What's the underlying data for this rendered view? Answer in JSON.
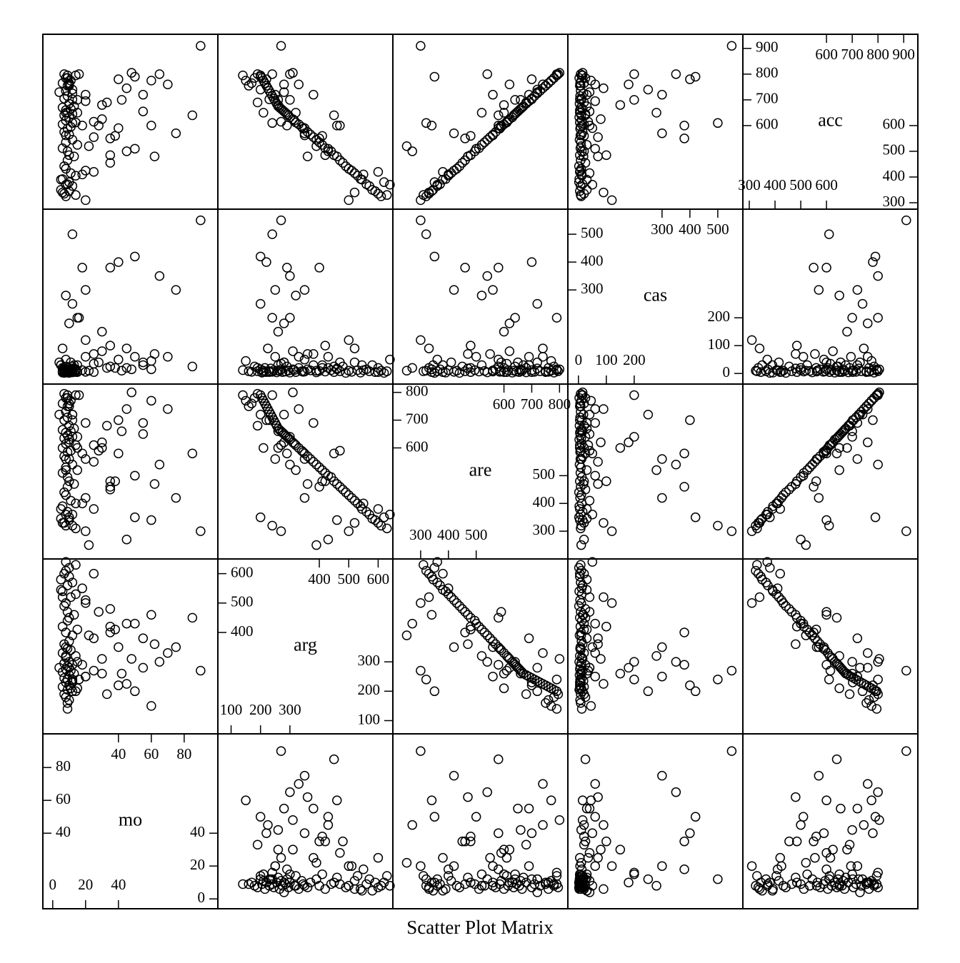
{
  "chart_data": {
    "type": "scatter_matrix",
    "title": "Scatter Plot Matrix",
    "color": "#000000",
    "variables": [
      {
        "name": "mo",
        "lim": [
          -6,
          100.5
        ],
        "lower_ticks": [
          0,
          20,
          40
        ],
        "upper_ticks": [
          40,
          60,
          80
        ],
        "values": [
          8,
          10,
          7,
          12,
          9,
          5,
          14,
          6,
          11,
          20,
          8,
          35,
          9,
          7,
          13,
          10,
          50,
          9,
          6,
          15,
          8,
          12,
          25,
          10,
          7,
          40,
          9,
          11,
          6,
          14,
          8,
          30,
          10,
          7,
          12,
          9,
          55,
          8,
          11,
          6,
          13,
          10,
          20,
          7,
          9,
          12,
          8,
          45,
          10,
          6,
          11,
          9,
          14,
          7,
          8,
          10,
          60,
          9,
          12,
          25,
          8,
          35,
          15,
          10,
          20,
          40,
          65,
          12,
          30,
          8,
          18,
          90,
          50,
          12,
          75,
          35,
          45,
          22,
          60,
          25,
          10,
          8,
          14,
          5,
          18,
          28,
          38,
          55,
          70,
          42,
          15,
          33,
          9,
          48,
          20,
          6,
          85,
          62,
          16,
          4
        ]
      },
      {
        "name": "arg",
        "lim": [
          55,
          650
        ],
        "lower_ticks": [
          100,
          200,
          300
        ],
        "upper_ticks": [
          400,
          500,
          600
        ],
        "values": [
          610,
          590,
          600,
          570,
          560,
          545,
          530,
          540,
          520,
          510,
          500,
          480,
          470,
          490,
          460,
          450,
          430,
          440,
          420,
          410,
          400,
          390,
          380,
          370,
          360,
          350,
          345,
          340,
          330,
          320,
          315,
          310,
          300,
          295,
          290,
          285,
          280,
          275,
          270,
          265,
          260,
          255,
          250,
          245,
          240,
          235,
          230,
          225,
          220,
          215,
          210,
          205,
          200,
          190,
          180,
          170,
          150,
          140,
          230,
          270,
          350,
          420,
          300,
          280,
          250,
          220,
          300,
          200,
          260,
          320,
          290,
          270,
          200,
          240,
          350,
          400,
          430,
          390,
          460,
          600,
          620,
          640,
          630,
          580,
          550,
          470,
          410,
          380,
          330,
          260,
          210,
          190,
          160,
          310,
          500,
          520,
          450,
          360,
          240,
          280
        ]
      },
      {
        "name": "are",
        "lim": [
          200,
          830
        ],
        "lower_ticks": [
          300,
          400,
          500
        ],
        "upper_ticks": [
          600,
          700,
          800
        ],
        "values": [
          320,
          340,
          330,
          360,
          370,
          380,
          400,
          390,
          410,
          420,
          430,
          450,
          460,
          440,
          470,
          480,
          500,
          495,
          510,
          520,
          530,
          540,
          550,
          560,
          570,
          580,
          585,
          590,
          600,
          610,
          615,
          620,
          630,
          635,
          640,
          645,
          650,
          655,
          660,
          665,
          670,
          680,
          690,
          700,
          710,
          720,
          730,
          740,
          750,
          760,
          770,
          780,
          790,
          795,
          780,
          760,
          770,
          790,
          700,
          610,
          560,
          480,
          640,
          620,
          560,
          700,
          540,
          720,
          600,
          520,
          580,
          300,
          350,
          320,
          420,
          460,
          270,
          250,
          340,
          380,
          350,
          360,
          310,
          345,
          400,
          590,
          480,
          690,
          740,
          660,
          600,
          680,
          750,
          800,
          300,
          330,
          580,
          470,
          790,
          720
        ]
      },
      {
        "name": "cas",
        "lim": [
          -38,
          590
        ],
        "lower_ticks": [
          0,
          100,
          200
        ],
        "upper_ticks": [
          300,
          400,
          500
        ],
        "values": [
          10,
          5,
          20,
          8,
          15,
          30,
          12,
          3,
          40,
          6,
          10,
          25,
          8,
          2,
          18,
          5,
          60,
          12,
          7,
          30,
          9,
          4,
          70,
          11,
          15,
          50,
          6,
          8,
          20,
          5,
          12,
          80,
          3,
          10,
          25,
          7,
          40,
          5,
          15,
          9,
          30,
          4,
          60,
          12,
          6,
          18,
          8,
          90,
          5,
          20,
          10,
          3,
          15,
          8,
          25,
          6,
          45,
          12,
          5,
          35,
          7,
          100,
          200,
          180,
          300,
          400,
          350,
          250,
          150,
          280,
          380,
          550,
          420,
          500,
          300,
          380,
          20,
          10,
          15,
          5,
          2,
          50,
          8,
          30,
          12,
          40,
          20,
          30,
          60,
          10,
          5,
          20,
          8,
          15,
          120,
          90,
          25,
          70,
          200,
          40
        ]
      },
      {
        "name": "acc",
        "lim": [
          275,
          955
        ],
        "lower_ticks": [
          300,
          400,
          500,
          600
        ],
        "upper_ticks": [
          600,
          700,
          800,
          900
        ],
        "values": [
          325,
          345,
          335,
          365,
          372,
          390,
          405,
          392,
          415,
          425,
          432,
          455,
          465,
          442,
          480,
          485,
          510,
          500,
          512,
          525,
          535,
          545,
          555,
          565,
          575,
          590,
          588,
          595,
          605,
          612,
          620,
          625,
          632,
          640,
          645,
          650,
          655,
          660,
          665,
          670,
          675,
          685,
          695,
          705,
          715,
          725,
          735,
          745,
          755,
          765,
          775,
          785,
          795,
          800,
          785,
          765,
          775,
          795,
          702,
          615,
          562,
          485,
          700,
          760,
          720,
          780,
          800,
          740,
          680,
          650,
          600,
          910,
          790,
          610,
          570,
          550,
          500,
          520,
          600,
          420,
          380,
          370,
          330,
          350,
          410,
          600,
          560,
          720,
          760,
          700,
          650,
          690,
          755,
          805,
          310,
          340,
          640,
          480,
          800,
          730
        ]
      }
    ]
  }
}
